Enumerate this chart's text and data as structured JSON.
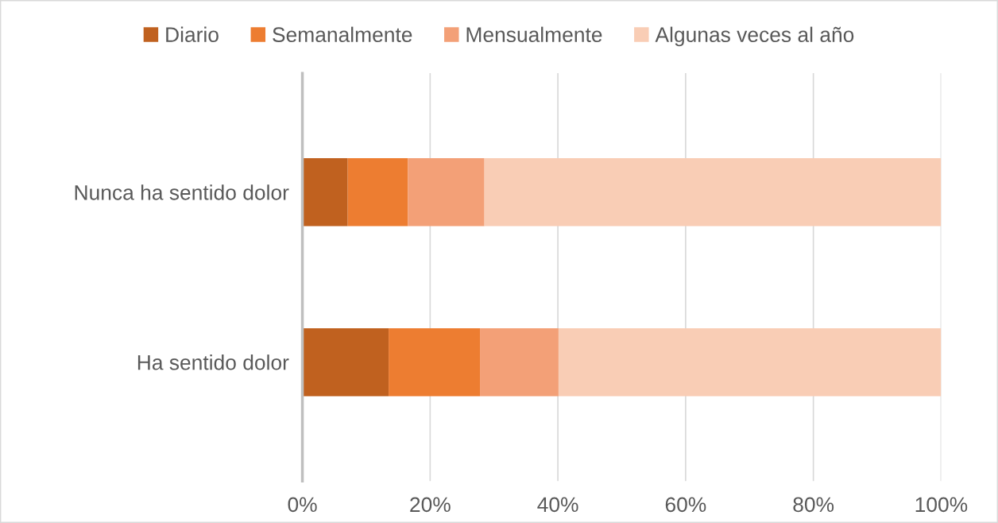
{
  "chart_data": {
    "type": "bar",
    "orientation": "horizontal",
    "stacked": true,
    "categories": [
      "Nunca ha sentido dolor",
      "Ha sentido dolor"
    ],
    "series": [
      {
        "name": "Diario",
        "color": "#c0611f",
        "values": [
          7.1,
          13.5
        ]
      },
      {
        "name": "Semanalmente",
        "color": "#ed7d31",
        "values": [
          9.4,
          14.3
        ]
      },
      {
        "name": "Mensualmente",
        "color": "#f3a077",
        "values": [
          12.0,
          12.3
        ]
      },
      {
        "name": "Algunas veces al año",
        "color": "#f9cdb5",
        "values": [
          71.5,
          59.9
        ]
      }
    ],
    "xlim": [
      0,
      100
    ],
    "xticks": [
      {
        "value": 0,
        "label": "0%"
      },
      {
        "value": 20,
        "label": "20%"
      },
      {
        "value": 40,
        "label": "40%"
      },
      {
        "value": 60,
        "label": "60%"
      },
      {
        "value": 80,
        "label": "80%"
      },
      {
        "value": 100,
        "label": "100%"
      }
    ],
    "grid": "x",
    "legend": "top"
  }
}
